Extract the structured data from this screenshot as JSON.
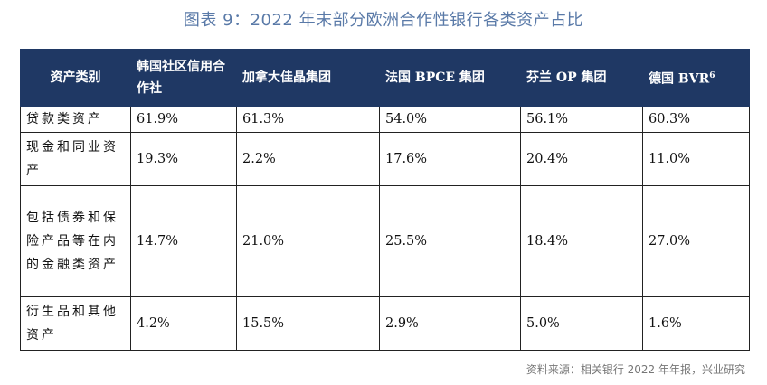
{
  "title": "图表 9：2022 年末部分欧洲合作性银行各类资产占比",
  "header": {
    "col0": "资产类别",
    "col1": "韩国社区信用合作社",
    "col2": "加拿大佳晶集团",
    "col3": "法国 BPCE 集团",
    "col4": "芬兰 OP 集团",
    "col5": "德国 BVR",
    "col5_sup": "6"
  },
  "rows": [
    {
      "label": "贷款类资产",
      "values": [
        "61.9%",
        "61.3%",
        "54.0%",
        "56.1%",
        "60.3%"
      ]
    },
    {
      "label": "现金和同业资产",
      "values": [
        "19.3%",
        "2.2%",
        "17.6%",
        "20.4%",
        "11.0%"
      ]
    },
    {
      "label": "包括债券和保险产品等在内的金融类资产",
      "values": [
        "14.7%",
        "21.0%",
        "25.5%",
        "18.4%",
        "27.0%"
      ]
    },
    {
      "label": "衍生品和其他资产",
      "values": [
        "4.2%",
        "15.5%",
        "2.9%",
        "5.0%",
        "1.6%"
      ]
    }
  ],
  "source": "资料来源：相关银行 2022 年年报，兴业研究"
}
